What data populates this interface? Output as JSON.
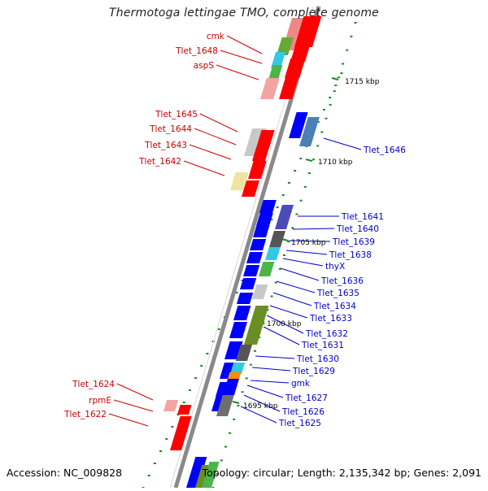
{
  "title": "Thermotoga lettingae TMO, complete genome",
  "accession": "Accession: NC_009828",
  "summary": "Topology: circular; Length: 2,135,342 bp; Genes: 2,091",
  "scale_labels": [
    "1715 kbp",
    "1710 kbp",
    "1705 kbp",
    "1700 kbp",
    "1695 kbp"
  ],
  "colors": {
    "forward_label": "#cc0000",
    "reverse_label": "#0000cc",
    "backbone": "#8a8a8a",
    "tick": "#1a8a1a"
  },
  "forward_genes": [
    "cmk",
    "Tlet_1648",
    "aspS",
    "Tlet_1645",
    "Tlet_1644",
    "Tlet_1643",
    "Tlet_1642",
    "Tlet_1624",
    "rpmE",
    "Tlet_1622"
  ],
  "reverse_genes": [
    "Tlet_1646",
    "Tlet_1641",
    "Tlet_1640",
    "Tlet_1639",
    "Tlet_1638",
    "thyX",
    "Tlet_1636",
    "Tlet_1635",
    "Tlet_1634",
    "Tlet_1633",
    "Tlet_1632",
    "Tlet_1631",
    "Tlet_1630",
    "Tlet_1629",
    "gmk",
    "Tlet_1627",
    "Tlet_1626",
    "Tlet_1625"
  ]
}
